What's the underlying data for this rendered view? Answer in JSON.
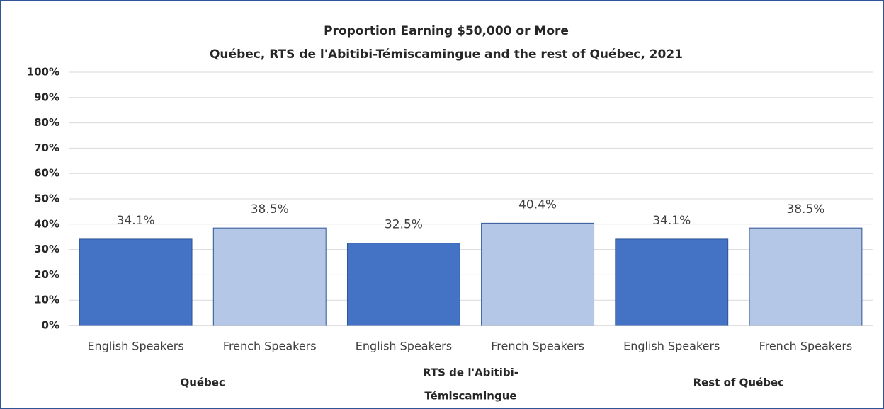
{
  "chart_data": {
    "type": "bar",
    "title": "Proportion Earning $50,000 or More",
    "subtitle": "Québec, RTS de l'Abitibi-Témiscamingue  and the rest of Québec, 2021",
    "colors": [
      "#4472c4",
      "#b4c7e7"
    ],
    "groups": [
      {
        "label": [
          "Québec"
        ],
        "categories": [
          "English Speakers",
          "French Speakers"
        ],
        "values": [
          34.1,
          38.5
        ],
        "value_labels": [
          "34.1%",
          "38.5%"
        ]
      },
      {
        "label": [
          "RTS de l'Abitibi-",
          "Témiscamingue"
        ],
        "categories": [
          "English Speakers",
          "French Speakers"
        ],
        "values": [
          32.5,
          40.4
        ],
        "value_labels": [
          "32.5%",
          "40.4%"
        ]
      },
      {
        "label": [
          "Rest of Québec"
        ],
        "categories": [
          "English Speakers",
          "French Speakers"
        ],
        "values": [
          34.1,
          38.5
        ],
        "value_labels": [
          "34.1%",
          "38.5%"
        ]
      }
    ],
    "ylim": [
      0,
      100
    ],
    "yticks": [
      {
        "value": 0,
        "label": "0%"
      },
      {
        "value": 10,
        "label": "10%"
      },
      {
        "value": 20,
        "label": "20%"
      },
      {
        "value": 30,
        "label": "30%"
      },
      {
        "value": 40,
        "label": "40%"
      },
      {
        "value": 50,
        "label": "50%"
      },
      {
        "value": 60,
        "label": "60%"
      },
      {
        "value": 70,
        "label": "70%"
      },
      {
        "value": 80,
        "label": "80%"
      },
      {
        "value": 90,
        "label": "90%"
      },
      {
        "value": 100,
        "label": "100%"
      }
    ],
    "grid": true
  }
}
